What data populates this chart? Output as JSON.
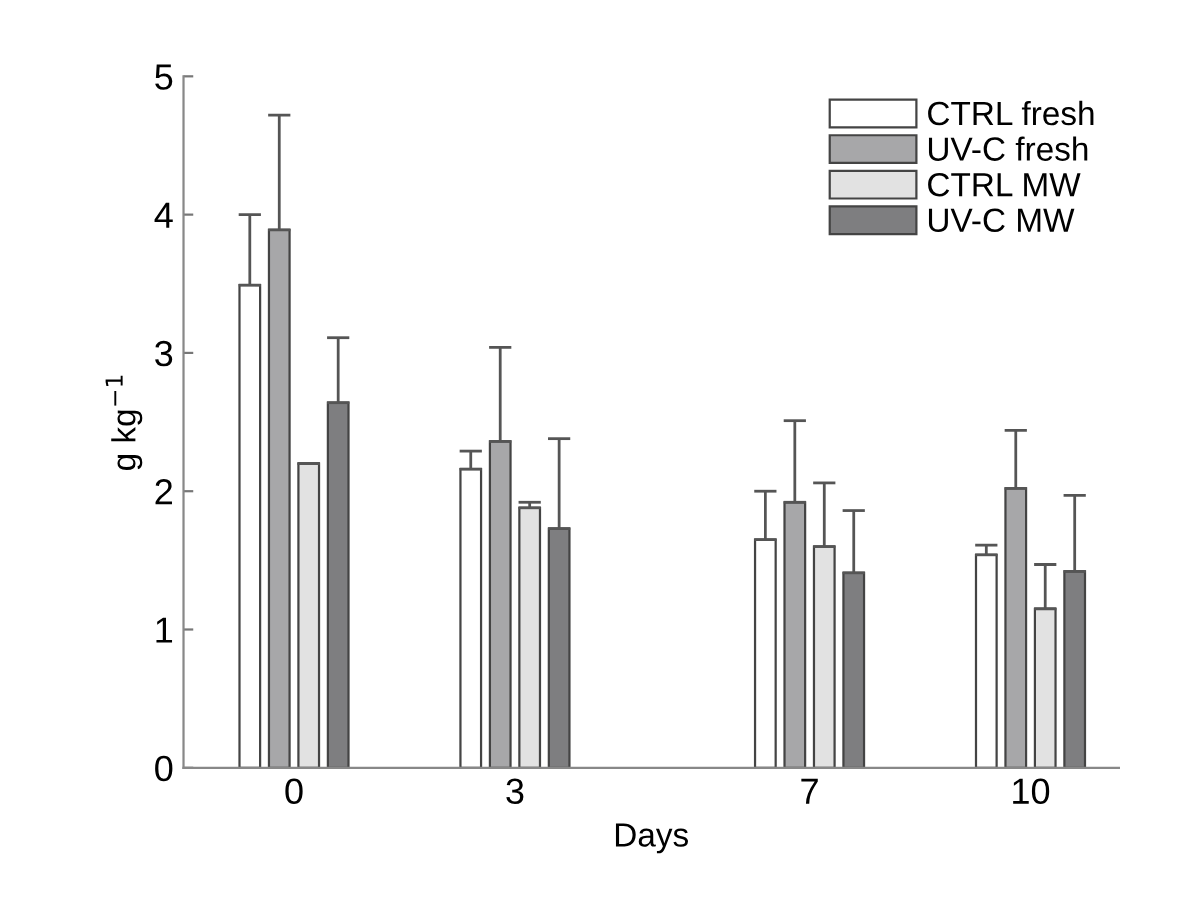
{
  "chart_data": {
    "type": "bar",
    "xlabel": "Days",
    "ylabel": "g kg$^{−1}$",
    "x": [
      0,
      3,
      7,
      10
    ],
    "xlim": [
      -1.5,
      11.2
    ],
    "xticks": [
      0,
      3,
      7,
      10
    ],
    "ylim": [
      0,
      5
    ],
    "yticks": [
      0,
      1,
      2,
      3,
      4,
      5
    ],
    "grid": false,
    "legend": "top right",
    "series": [
      {
        "name": "CTRL fresh",
        "color": "#ffffff",
        "values": [
          3.49,
          2.16,
          1.65,
          1.54
        ],
        "errors": [
          [
            3.49,
            4.0
          ],
          [
            2.16,
            2.29
          ],
          [
            1.65,
            2.0
          ],
          [
            1.54,
            1.61
          ]
        ]
      },
      {
        "name": "UV-C fresh",
        "color": "#a7a7a9",
        "values": [
          3.89,
          2.36,
          1.92,
          2.02
        ],
        "errors": [
          [
            3.89,
            4.72
          ],
          [
            2.36,
            3.04
          ],
          [
            1.92,
            2.51
          ],
          [
            2.02,
            2.44
          ]
        ]
      },
      {
        "name": "CTRL MW",
        "color": "#e2e2e2",
        "values": [
          2.2,
          1.88,
          1.6,
          1.15
        ],
        "errors": [
          [
            2.2,
            2.2
          ],
          [
            1.88,
            1.92
          ],
          [
            1.6,
            2.06
          ],
          [
            1.15,
            1.47
          ]
        ]
      },
      {
        "name": "UV-C MW",
        "color": "#7e7e80",
        "values": [
          2.64,
          1.73,
          1.41,
          1.42
        ],
        "errors": [
          [
            2.64,
            3.11
          ],
          [
            1.73,
            2.38
          ],
          [
            1.41,
            1.86
          ],
          [
            1.42,
            1.97
          ]
        ]
      }
    ]
  }
}
